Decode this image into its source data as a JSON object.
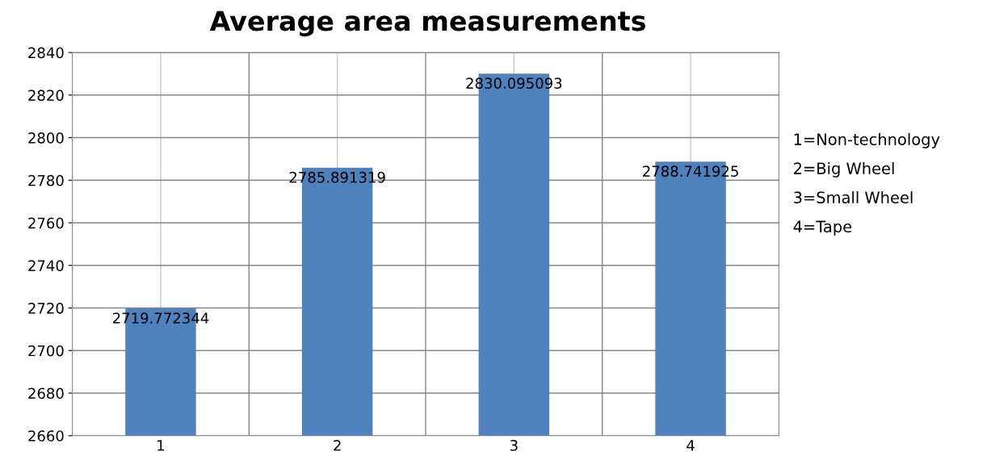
{
  "chart_data": {
    "type": "bar",
    "title": "Average area measurements",
    "categories": [
      "1",
      "2",
      "3",
      "4"
    ],
    "values": [
      2719.772344,
      2785.891319,
      2830.095093,
      2788.741925
    ],
    "color": "#4f81bd",
    "data_labels": true,
    "ylim": [
      2660,
      2840
    ],
    "yticks": [
      2660,
      2680,
      2700,
      2720,
      2740,
      2760,
      2780,
      2800,
      2820,
      2840
    ],
    "grid": true,
    "annotations": [
      "1=Non-technology",
      "2=Big Wheel",
      "3=Small Wheel",
      "4=Tape"
    ]
  }
}
